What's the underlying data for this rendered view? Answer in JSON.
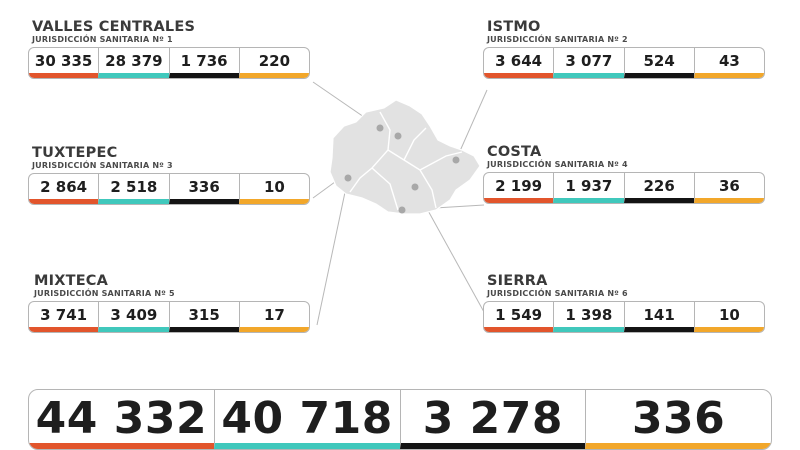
{
  "colors": {
    "confirmed": "#e2552c",
    "recovered": "#40c8bc",
    "deaths": "#141414",
    "active": "#f2a72a",
    "map_fill": "#e2e2e2",
    "leader_line": "#b5b5b5"
  },
  "regions": [
    {
      "name": "VALLES CENTRALES",
      "sub": "JURISDICCIÓN SANITARIA Nº 1",
      "values": [
        "30 335",
        "28 379",
        "1 736",
        "220"
      ]
    },
    {
      "name": "ISTMO",
      "sub": "JURISDICCIÓN SANITARIA Nº 2",
      "values": [
        "3 644",
        "3 077",
        "524",
        "43"
      ]
    },
    {
      "name": "TUXTEPEC",
      "sub": "JURISDICCIÓN SANITARIA Nº 3",
      "values": [
        "2 864",
        "2 518",
        "336",
        "10"
      ]
    },
    {
      "name": "COSTA",
      "sub": "JURISDICCIÓN SANITARIA Nº 4",
      "values": [
        "2 199",
        "1 937",
        "226",
        "36"
      ]
    },
    {
      "name": "MIXTECA",
      "sub": "JURISDICCIÓN SANITARIA Nº 5",
      "values": [
        "3 741",
        "3 409",
        "315",
        "17"
      ]
    },
    {
      "name": "SIERRA",
      "sub": "JURISDICCIÓN SANITARIA Nº 6",
      "values": [
        "1 549",
        "1 398",
        "141",
        "10"
      ]
    }
  ],
  "total": {
    "values": [
      "44 332",
      "40 718",
      "3 278",
      "336"
    ]
  }
}
